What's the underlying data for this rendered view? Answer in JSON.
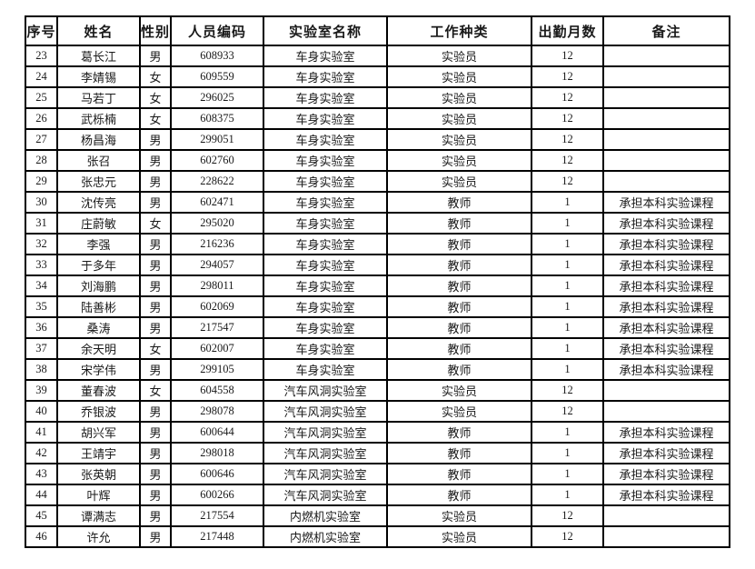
{
  "page": {
    "background_color": "#ffffff",
    "text_color": "#1a1a1a",
    "border_color": "#000000"
  },
  "table": {
    "columns": [
      {
        "key": "serial",
        "label": "序号"
      },
      {
        "key": "name",
        "label": "姓名"
      },
      {
        "key": "gender",
        "label": "性别"
      },
      {
        "key": "personnel-code",
        "label": "人员编码"
      },
      {
        "key": "lab-name",
        "label": "实验室名称"
      },
      {
        "key": "work-type",
        "label": "工作种类"
      },
      {
        "key": "attendance-months",
        "label": "出勤月数"
      },
      {
        "key": "remarks",
        "label": "备注"
      }
    ],
    "rows": [
      [
        "23",
        "葛长江",
        "男",
        "608933",
        "车身实验室",
        "实验员",
        "12",
        ""
      ],
      [
        "24",
        "李婧锡",
        "女",
        "609559",
        "车身实验室",
        "实验员",
        "12",
        ""
      ],
      [
        "25",
        "马若丁",
        "女",
        "296025",
        "车身实验室",
        "实验员",
        "12",
        ""
      ],
      [
        "26",
        "武栎楠",
        "女",
        "608375",
        "车身实验室",
        "实验员",
        "12",
        ""
      ],
      [
        "27",
        "杨昌海",
        "男",
        "299051",
        "车身实验室",
        "实验员",
        "12",
        ""
      ],
      [
        "28",
        "张召",
        "男",
        "602760",
        "车身实验室",
        "实验员",
        "12",
        ""
      ],
      [
        "29",
        "张忠元",
        "男",
        "228622",
        "车身实验室",
        "实验员",
        "12",
        ""
      ],
      [
        "30",
        "沈传亮",
        "男",
        "602471",
        "车身实验室",
        "教师",
        "1",
        "承担本科实验课程"
      ],
      [
        "31",
        "庄蔚敏",
        "女",
        "295020",
        "车身实验室",
        "教师",
        "1",
        "承担本科实验课程"
      ],
      [
        "32",
        "李强",
        "男",
        "216236",
        "车身实验室",
        "教师",
        "1",
        "承担本科实验课程"
      ],
      [
        "33",
        "于多年",
        "男",
        "294057",
        "车身实验室",
        "教师",
        "1",
        "承担本科实验课程"
      ],
      [
        "34",
        "刘海鹏",
        "男",
        "298011",
        "车身实验室",
        "教师",
        "1",
        "承担本科实验课程"
      ],
      [
        "35",
        "陆善彬",
        "男",
        "602069",
        "车身实验室",
        "教师",
        "1",
        "承担本科实验课程"
      ],
      [
        "36",
        "桑涛",
        "男",
        "217547",
        "车身实验室",
        "教师",
        "1",
        "承担本科实验课程"
      ],
      [
        "37",
        "余天明",
        "女",
        "602007",
        "车身实验室",
        "教师",
        "1",
        "承担本科实验课程"
      ],
      [
        "38",
        "宋学伟",
        "男",
        "299105",
        "车身实验室",
        "教师",
        "1",
        "承担本科实验课程"
      ],
      [
        "39",
        "董春波",
        "女",
        "604558",
        "汽车风洞实验室",
        "实验员",
        "12",
        ""
      ],
      [
        "40",
        "乔银波",
        "男",
        "298078",
        "汽车风洞实验室",
        "实验员",
        "12",
        ""
      ],
      [
        "41",
        "胡兴军",
        "男",
        "600644",
        "汽车风洞实验室",
        "教师",
        "1",
        "承担本科实验课程"
      ],
      [
        "42",
        "王靖宇",
        "男",
        "298018",
        "汽车风洞实验室",
        "教师",
        "1",
        "承担本科实验课程"
      ],
      [
        "43",
        "张英朝",
        "男",
        "600646",
        "汽车风洞实验室",
        "教师",
        "1",
        "承担本科实验课程"
      ],
      [
        "44",
        "叶辉",
        "男",
        "600266",
        "汽车风洞实验室",
        "教师",
        "1",
        "承担本科实验课程"
      ],
      [
        "45",
        "谭满志",
        "男",
        "217554",
        "内燃机实验室",
        "实验员",
        "12",
        ""
      ],
      [
        "46",
        "许允",
        "男",
        "217448",
        "内燃机实验室",
        "实验员",
        "12",
        ""
      ]
    ]
  }
}
